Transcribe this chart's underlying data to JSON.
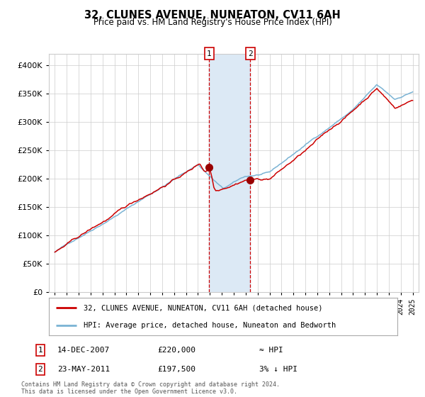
{
  "title": "32, CLUNES AVENUE, NUNEATON, CV11 6AH",
  "subtitle": "Price paid vs. HM Land Registry's House Price Index (HPI)",
  "legend_line1": "32, CLUNES AVENUE, NUNEATON, CV11 6AH (detached house)",
  "legend_line2": "HPI: Average price, detached house, Nuneaton and Bedworth",
  "annotation1_date": "14-DEC-2007",
  "annotation1_price": "£220,000",
  "annotation1_hpi": "≈ HPI",
  "annotation2_date": "23-MAY-2011",
  "annotation2_price": "£197,500",
  "annotation2_hpi": "3% ↓ HPI",
  "footer": "Contains HM Land Registry data © Crown copyright and database right 2024.\nThis data is licensed under the Open Government Licence v3.0.",
  "hpi_color": "#7ab3d4",
  "price_color": "#cc0000",
  "dot_color": "#990000",
  "vline_color": "#cc0000",
  "shade_color": "#dce9f5",
  "ylim": [
    0,
    420000
  ],
  "yticks": [
    0,
    50000,
    100000,
    150000,
    200000,
    250000,
    300000,
    350000,
    400000
  ],
  "marker1_x": 2007.95,
  "marker1_y": 220000,
  "marker2_x": 2011.38,
  "marker2_y": 197500,
  "shade_x1": 2007.95,
  "shade_x2": 2011.38,
  "background_color": "#ffffff",
  "grid_color": "#cccccc",
  "annotation_box_color": "#cc0000",
  "xlim_left": 1994.5,
  "xlim_right": 2025.5
}
